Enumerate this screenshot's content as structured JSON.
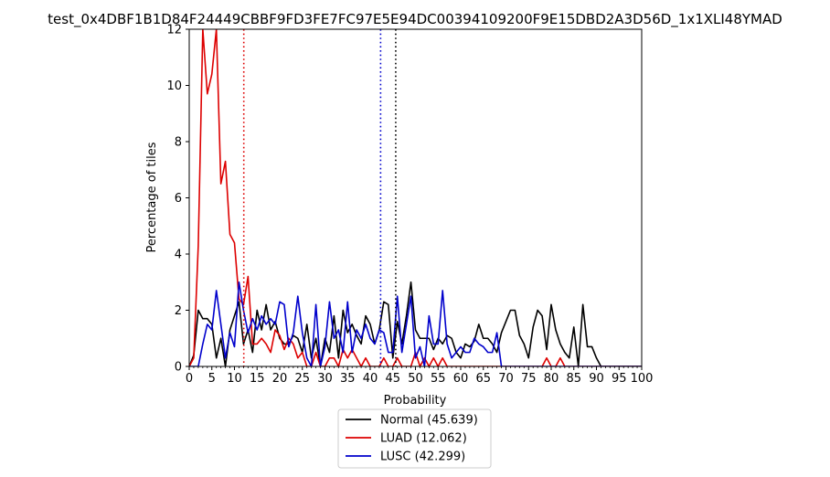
{
  "chart_data": {
    "type": "line",
    "title": "test_0x4DBF1B1D84F24449CBBF9FD3FE7FC97E5E94DC00394109200F9E15DBD2A3D56D_1x1XLI48YMAD",
    "xlabel": "Probability",
    "ylabel": "Percentage of tiles",
    "xlim": [
      0,
      100
    ],
    "ylim": [
      0,
      12
    ],
    "x_ticks": [
      0,
      5,
      10,
      15,
      20,
      25,
      30,
      35,
      40,
      45,
      50,
      55,
      60,
      65,
      70,
      75,
      80,
      85,
      90,
      95,
      100
    ],
    "x_tick_labels": [
      "0",
      "5",
      "10",
      "15",
      "20",
      "25",
      "30",
      "35",
      "40",
      "45",
      "50",
      "55",
      "60",
      "65",
      "70",
      "75",
      "80",
      "85",
      "90",
      "95",
      "100"
    ],
    "x_minor_ticks": [
      1,
      2,
      3,
      4,
      6,
      7,
      8,
      9,
      11,
      12,
      13,
      14,
      16,
      17,
      18,
      19,
      21,
      22,
      23,
      24,
      26,
      27,
      28,
      29,
      31,
      32,
      33,
      34,
      36,
      37,
      38,
      39,
      41,
      42,
      43,
      44,
      46,
      47,
      48,
      49,
      51,
      52,
      53,
      54,
      56,
      57,
      58,
      59,
      61,
      62,
      63,
      64,
      66,
      67,
      68,
      69,
      71,
      72,
      73,
      74,
      76,
      77,
      78,
      79,
      81,
      82,
      83,
      84,
      86,
      87,
      88,
      89,
      91,
      92,
      93,
      94,
      96,
      97,
      98,
      99
    ],
    "x_minor_tick_labels": [
      "",
      "",
      "",
      "",
      "",
      "",
      "",
      "",
      "",
      "",
      "",
      "",
      "",
      "",
      "",
      "",
      "",
      "",
      "",
      "",
      "",
      "",
      "",
      "",
      "",
      "",
      "",
      "",
      "",
      "",
      "",
      "",
      "",
      "",
      "",
      "",
      "",
      "",
      "",
      "",
      "",
      "",
      "",
      "",
      "",
      "",
      "",
      "",
      "",
      "",
      "",
      "",
      "",
      "",
      "",
      "",
      "",
      "",
      "",
      "",
      "",
      "",
      "",
      "",
      "",
      "",
      "",
      "",
      "",
      "",
      "",
      "",
      "",
      "",
      "",
      "",
      "",
      "",
      "",
      "",
      ""
    ],
    "y_ticks": [
      0,
      2,
      4,
      6,
      8,
      10,
      12
    ],
    "y_tick_labels": [
      "0",
      "2",
      "4",
      "6",
      "8",
      "10",
      "12"
    ],
    "legend_position": "below-plot",
    "x": [
      0,
      1,
      2,
      3,
      4,
      5,
      6,
      7,
      8,
      9,
      10,
      11,
      12,
      13,
      14,
      15,
      16,
      17,
      18,
      19,
      20,
      21,
      22,
      23,
      24,
      25,
      26,
      27,
      28,
      29,
      30,
      31,
      32,
      33,
      34,
      35,
      36,
      37,
      38,
      39,
      40,
      41,
      42,
      43,
      44,
      45,
      46,
      47,
      48,
      49,
      50,
      51,
      52,
      53,
      54,
      55,
      56,
      57,
      58,
      59,
      60,
      61,
      62,
      63,
      64,
      65,
      66,
      67,
      68,
      69,
      70,
      71,
      72,
      73,
      74,
      75,
      76,
      77,
      78,
      79,
      80,
      81,
      82,
      83,
      84,
      85,
      86,
      87,
      88,
      89,
      90,
      91,
      92,
      93,
      94,
      95,
      96,
      97,
      98,
      99,
      100
    ],
    "series": [
      {
        "name": "Normal (45.639)",
        "color": "#000000",
        "values": [
          0,
          0.4,
          2.0,
          1.7,
          1.7,
          1.5,
          0.3,
          1.0,
          0,
          1.3,
          1.8,
          2.3,
          0.8,
          1.3,
          0.5,
          2.0,
          1.3,
          2.2,
          1.3,
          1.6,
          1.0,
          0.8,
          0.8,
          1.1,
          1.0,
          0.5,
          1.5,
          0.3,
          1.0,
          0,
          1.0,
          0.5,
          1.8,
          0.3,
          2.0,
          1.2,
          1.5,
          1.1,
          0.8,
          1.8,
          1.5,
          0.8,
          1.3,
          2.3,
          2.2,
          0.3,
          1.6,
          0.8,
          1.8,
          3.0,
          1.3,
          1.0,
          1.0,
          1.0,
          0.6,
          1.0,
          0.8,
          1.1,
          1.0,
          0.5,
          0.3,
          0.8,
          0.7,
          0.9,
          1.5,
          1.0,
          1.0,
          0.8,
          0.5,
          1.2,
          1.6,
          2.0,
          2.0,
          1.1,
          0.8,
          0.3,
          1.4,
          2.0,
          1.8,
          0.6,
          2.2,
          1.3,
          0.8,
          0.5,
          0.3,
          1.4,
          0,
          2.2,
          0.7,
          0.7,
          0.3,
          0,
          0,
          0,
          0,
          0,
          0,
          0,
          0,
          0,
          0
        ]
      },
      {
        "name": "LUAD (12.062)",
        "color": "#dd0000",
        "values": [
          0,
          0.3,
          4.3,
          12.0,
          9.7,
          10.4,
          12.0,
          6.5,
          7.3,
          4.7,
          4.4,
          2.4,
          2.2,
          3.2,
          0.8,
          0.8,
          1.0,
          0.8,
          0.5,
          1.3,
          1.1,
          0.6,
          1.0,
          0.8,
          0.3,
          0.5,
          0,
          0,
          0.5,
          0,
          0,
          0.3,
          0.3,
          0,
          0.6,
          0.3,
          0.6,
          0.3,
          0,
          0.3,
          0,
          0,
          0,
          0.3,
          0,
          0,
          0.3,
          0,
          0,
          0,
          0.5,
          0,
          0.3,
          0,
          0.3,
          0,
          0.3,
          0,
          0,
          0,
          0,
          0,
          0,
          0,
          0,
          0,
          0,
          0,
          0,
          0,
          0,
          0,
          0,
          0,
          0,
          0,
          0,
          0,
          0,
          0.3,
          0,
          0,
          0.3,
          0,
          0,
          0,
          0,
          0,
          0,
          0,
          0,
          0,
          0,
          0,
          0,
          0,
          0,
          0,
          0,
          0,
          0
        ]
      },
      {
        "name": "LUSC (42.299)",
        "color": "#0000cc",
        "values": [
          0,
          0,
          0,
          0.8,
          1.5,
          1.3,
          2.7,
          1.5,
          0.3,
          1.2,
          0.7,
          3.0,
          2.0,
          1.2,
          1.7,
          1.3,
          1.8,
          1.5,
          1.7,
          1.5,
          2.3,
          2.2,
          0.7,
          1.2,
          2.5,
          1.2,
          0.3,
          0,
          2.2,
          0,
          0.7,
          2.3,
          1.0,
          1.3,
          0.5,
          2.3,
          0.5,
          1.3,
          1.0,
          1.5,
          1.0,
          0.8,
          1.3,
          1.2,
          0.5,
          0.5,
          2.5,
          0.5,
          1.5,
          2.5,
          0.3,
          0.7,
          0,
          1.8,
          0.8,
          0.8,
          2.7,
          0.8,
          0.3,
          0.5,
          0.7,
          0.5,
          0.5,
          1.0,
          0.8,
          0.7,
          0.5,
          0.5,
          1.2,
          0,
          0,
          0,
          0,
          0,
          0,
          0,
          0,
          0,
          0,
          0,
          0,
          0,
          0,
          0,
          0,
          0,
          0,
          0,
          0,
          0,
          0,
          0,
          0,
          0,
          0,
          0,
          0,
          0,
          0,
          0,
          0
        ]
      }
    ],
    "vlines": [
      {
        "x": 12.062,
        "color": "#dd0000"
      },
      {
        "x": 42.299,
        "color": "#0000cc"
      },
      {
        "x": 45.639,
        "color": "#000000"
      }
    ]
  }
}
